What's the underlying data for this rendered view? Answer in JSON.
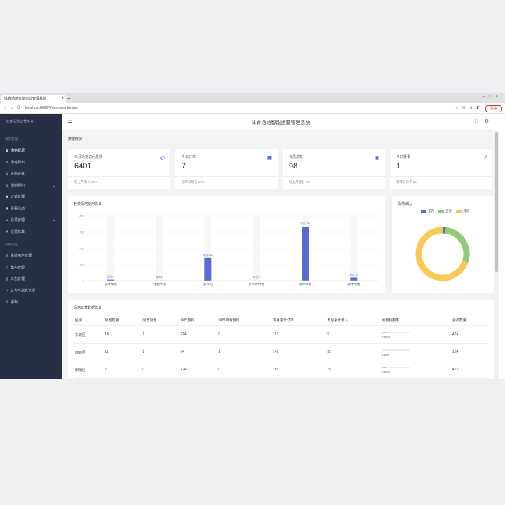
{
  "browser": {
    "tab_title": "体育场馆智能运营管理系统",
    "url": "localhost:8080/#/dashboard/index",
    "pause_label": "暂停"
  },
  "sidebar": {
    "logo": "体育场馆运营平台",
    "groups": [
      {
        "label": "场馆管理",
        "items": [
          {
            "label": "场馆概况",
            "icon": "dashboard-icon",
            "active": true,
            "expandable": false
          },
          {
            "label": "场地列表",
            "icon": "list-icon",
            "active": false,
            "expandable": false
          },
          {
            "label": "设施设备",
            "icon": "gear-icon",
            "active": false,
            "expandable": false
          },
          {
            "label": "场馆预约",
            "icon": "calendar-icon",
            "active": false,
            "expandable": true
          },
          {
            "label": "订单管理",
            "icon": "order-icon",
            "active": false,
            "expandable": false
          },
          {
            "label": "赛事活动",
            "icon": "trophy-icon",
            "active": false,
            "expandable": false
          },
          {
            "label": "会员管理",
            "icon": "user-icon",
            "active": false,
            "expandable": true
          },
          {
            "label": "收费标准",
            "icon": "money-icon",
            "active": false,
            "expandable": false
          }
        ]
      },
      {
        "label": "系统设置",
        "items": [
          {
            "label": "系统用户管理",
            "icon": "users-icon",
            "active": false,
            "expandable": false
          },
          {
            "label": "角色权限",
            "icon": "lock-icon",
            "active": false,
            "expandable": false
          },
          {
            "label": "日志管理",
            "icon": "log-icon",
            "active": false,
            "expandable": false
          },
          {
            "label": "公告与消息管理",
            "icon": "bell-icon",
            "active": false,
            "expandable": false
          },
          {
            "label": "退出",
            "icon": "power-icon",
            "active": false,
            "expandable": false
          }
        ]
      }
    ]
  },
  "header": {
    "title": "体育场馆智能运营管理系统"
  },
  "section_title": "数据概况",
  "cards": [
    {
      "label": "本月场馆访问总数",
      "value": "6401",
      "icon": "globe-icon",
      "footer": "较上月增长 12%"
    },
    {
      "label": "今日订单",
      "value": "7",
      "icon": "doc-icon",
      "footer": "较昨日增长 10%"
    },
    {
      "label": "会员总数",
      "value": "98",
      "icon": "member-icon",
      "footer": "较上月增长 8%"
    },
    {
      "label": "今日赛事",
      "value": "1",
      "icon": "flag-icon",
      "footer": "较昨日持平 0%"
    }
  ],
  "bar_panel_title": "各类场地使用统计",
  "pie_panel_title": "场地占比",
  "chart_data": [
    {
      "type": "bar",
      "title": "各类场地使用统计",
      "categories": [
        "篮球场地",
        "羽毛球场",
        "游泳馆",
        "乒乓球场地",
        "足球场地",
        "网球场地"
      ],
      "values": [
        6,
        0,
        140,
        0,
        335,
        20
      ],
      "point_labels": [
        "场次 6",
        "场次 0",
        "场次 140",
        "场次 0",
        "场次 335",
        "场次 20"
      ],
      "yticks": [
        0,
        100,
        200,
        300,
        400
      ],
      "ylim": [
        0,
        400
      ],
      "grid": true
    },
    {
      "type": "pie",
      "title": "场地占比",
      "labels": [
        "室内",
        "室外",
        "其他"
      ],
      "values": [
        2,
        28,
        70
      ],
      "colors": [
        "#5470c6",
        "#91cc75",
        "#fac858"
      ],
      "legend": "top"
    }
  ],
  "table": {
    "title": "场馆运营数据统计",
    "headers": [
      "区域",
      "场地数量",
      "闲置场地",
      "今日预约",
      "今日取消预约",
      "本月累计订单",
      "本月累计收入",
      "场地利用率",
      "会员数量"
    ],
    "rows": [
      {
        "area": "东城区",
        "c1": "14",
        "c2": "1",
        "c3": "214",
        "c4": "0",
        "c5": "161",
        "c6": "51",
        "rate": "7.00%",
        "rate_value": 7,
        "c8": "424"
      },
      {
        "area": "西城区",
        "c1": "11",
        "c2": "1",
        "c3": "74",
        "c4": "1",
        "c5": "142",
        "c6": "32",
        "rate": "1.5%",
        "rate_value": 1.5,
        "c8": "154"
      },
      {
        "area": "朝阳区",
        "c1": "7",
        "c2": "0",
        "c3": "124",
        "c4": "0",
        "c5": "165",
        "c6": "75",
        "rate": "8.00%",
        "rate_value": 8,
        "c8": "472"
      },
      {
        "area": "海淀",
        "c1": "9",
        "c2": "0",
        "c3": "152",
        "c4": "0",
        "c5": "110",
        "c6": "20",
        "rate": "9.45%",
        "rate_value": 9.45,
        "c8": "312"
      }
    ]
  }
}
